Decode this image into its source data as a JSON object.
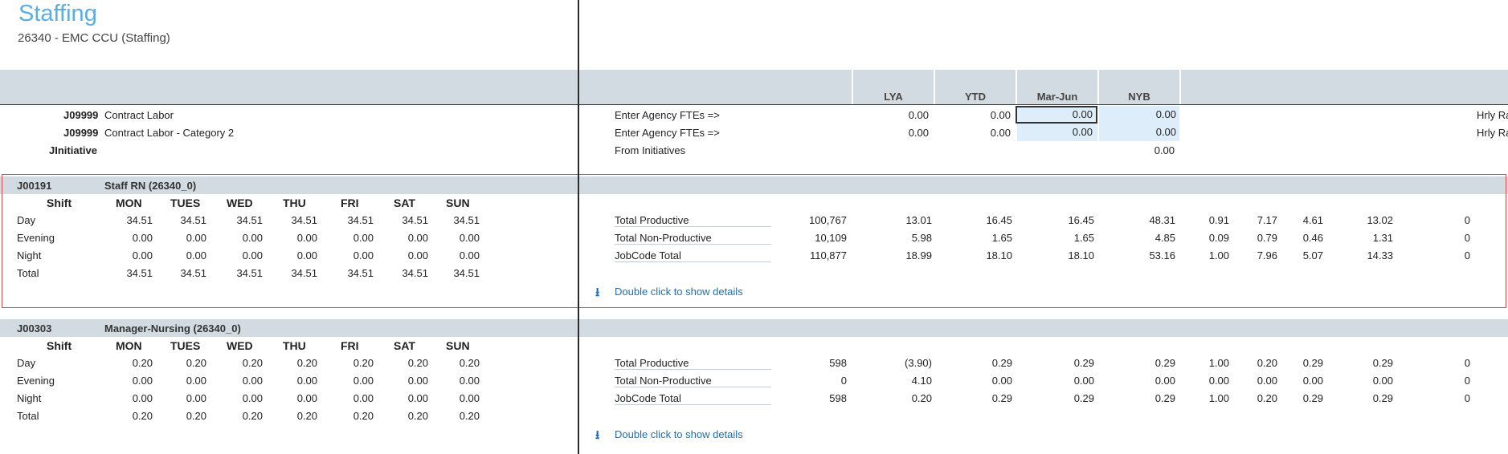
{
  "header": {
    "title": "Staffing",
    "subtitle": "26340 - EMC CCU (Staffing)"
  },
  "columns": [
    "LYA",
    "YTD",
    "Mar-Jun",
    "NYB"
  ],
  "topRows": [
    {
      "code": "J09999",
      "desc": "Contract Labor",
      "label": "Enter Agency FTEs =>",
      "lya": "0.00",
      "ytd": "0.00",
      "marjun": "0.00",
      "nyb": "0.00",
      "right": "Hrly Ra"
    },
    {
      "code": "J09999",
      "desc": "Contract Labor - Category 2",
      "label": "Enter Agency FTEs =>",
      "lya": "0.00",
      "ytd": "0.00",
      "marjun": "0.00",
      "nyb": "0.00",
      "right": "Hrly Ra"
    },
    {
      "code": "JInitiative",
      "label": "From Initiatives",
      "nyb": "0.00"
    }
  ],
  "days": [
    "Shift",
    "MON",
    "TUES",
    "WED",
    "THU",
    "FRI",
    "SAT",
    "SUN"
  ],
  "sections": [
    {
      "code": "J00191",
      "name": "Staff RN (26340_0)",
      "shifts": [
        {
          "name": "Day",
          "vals": [
            "34.51",
            "34.51",
            "34.51",
            "34.51",
            "34.51",
            "34.51",
            "34.51"
          ]
        },
        {
          "name": "Evening",
          "vals": [
            "0.00",
            "0.00",
            "0.00",
            "0.00",
            "0.00",
            "0.00",
            "0.00"
          ]
        },
        {
          "name": "Night",
          "vals": [
            "0.00",
            "0.00",
            "0.00",
            "0.00",
            "0.00",
            "0.00",
            "0.00"
          ]
        },
        {
          "name": "Total",
          "vals": [
            "34.51",
            "34.51",
            "34.51",
            "34.51",
            "34.51",
            "34.51",
            "34.51"
          ]
        }
      ],
      "summary": [
        {
          "label": "Total Productive",
          "vals": [
            "100,767",
            "13.01",
            "16.45",
            "16.45",
            "48.31",
            "0.91",
            "7.17",
            "4.61",
            "13.02",
            "0"
          ]
        },
        {
          "label": "Total Non-Productive",
          "vals": [
            "10,109",
            "5.98",
            "1.65",
            "1.65",
            "4.85",
            "0.09",
            "0.79",
            "0.46",
            "1.31",
            "0"
          ]
        },
        {
          "label": "JobCode Total",
          "vals": [
            "110,877",
            "18.99",
            "18.10",
            "18.10",
            "53.16",
            "1.00",
            "7.96",
            "5.07",
            "14.33",
            "0"
          ]
        }
      ],
      "link": "Double click to show details"
    },
    {
      "code": "J00303",
      "name": "Manager-Nursing (26340_0)",
      "shifts": [
        {
          "name": "Day",
          "vals": [
            "0.20",
            "0.20",
            "0.20",
            "0.20",
            "0.20",
            "0.20",
            "0.20"
          ]
        },
        {
          "name": "Evening",
          "vals": [
            "0.00",
            "0.00",
            "0.00",
            "0.00",
            "0.00",
            "0.00",
            "0.00"
          ]
        },
        {
          "name": "Night",
          "vals": [
            "0.00",
            "0.00",
            "0.00",
            "0.00",
            "0.00",
            "0.00",
            "0.00"
          ]
        },
        {
          "name": "Total",
          "vals": [
            "0.20",
            "0.20",
            "0.20",
            "0.20",
            "0.20",
            "0.20",
            "0.20"
          ]
        }
      ],
      "summary": [
        {
          "label": "Total Productive",
          "vals": [
            "598",
            "(3.90)",
            "0.29",
            "0.29",
            "0.29",
            "1.00",
            "0.20",
            "0.29",
            "0.29",
            "0"
          ]
        },
        {
          "label": "Total Non-Productive",
          "vals": [
            "0",
            "4.10",
            "0.00",
            "0.00",
            "0.00",
            "0.00",
            "0.00",
            "0.00",
            "0.00",
            "0"
          ]
        },
        {
          "label": "JobCode Total",
          "vals": [
            "598",
            "0.20",
            "0.29",
            "0.29",
            "0.29",
            "1.00",
            "0.20",
            "0.29",
            "0.29",
            "0"
          ]
        }
      ],
      "link": "Double click to show details"
    }
  ]
}
